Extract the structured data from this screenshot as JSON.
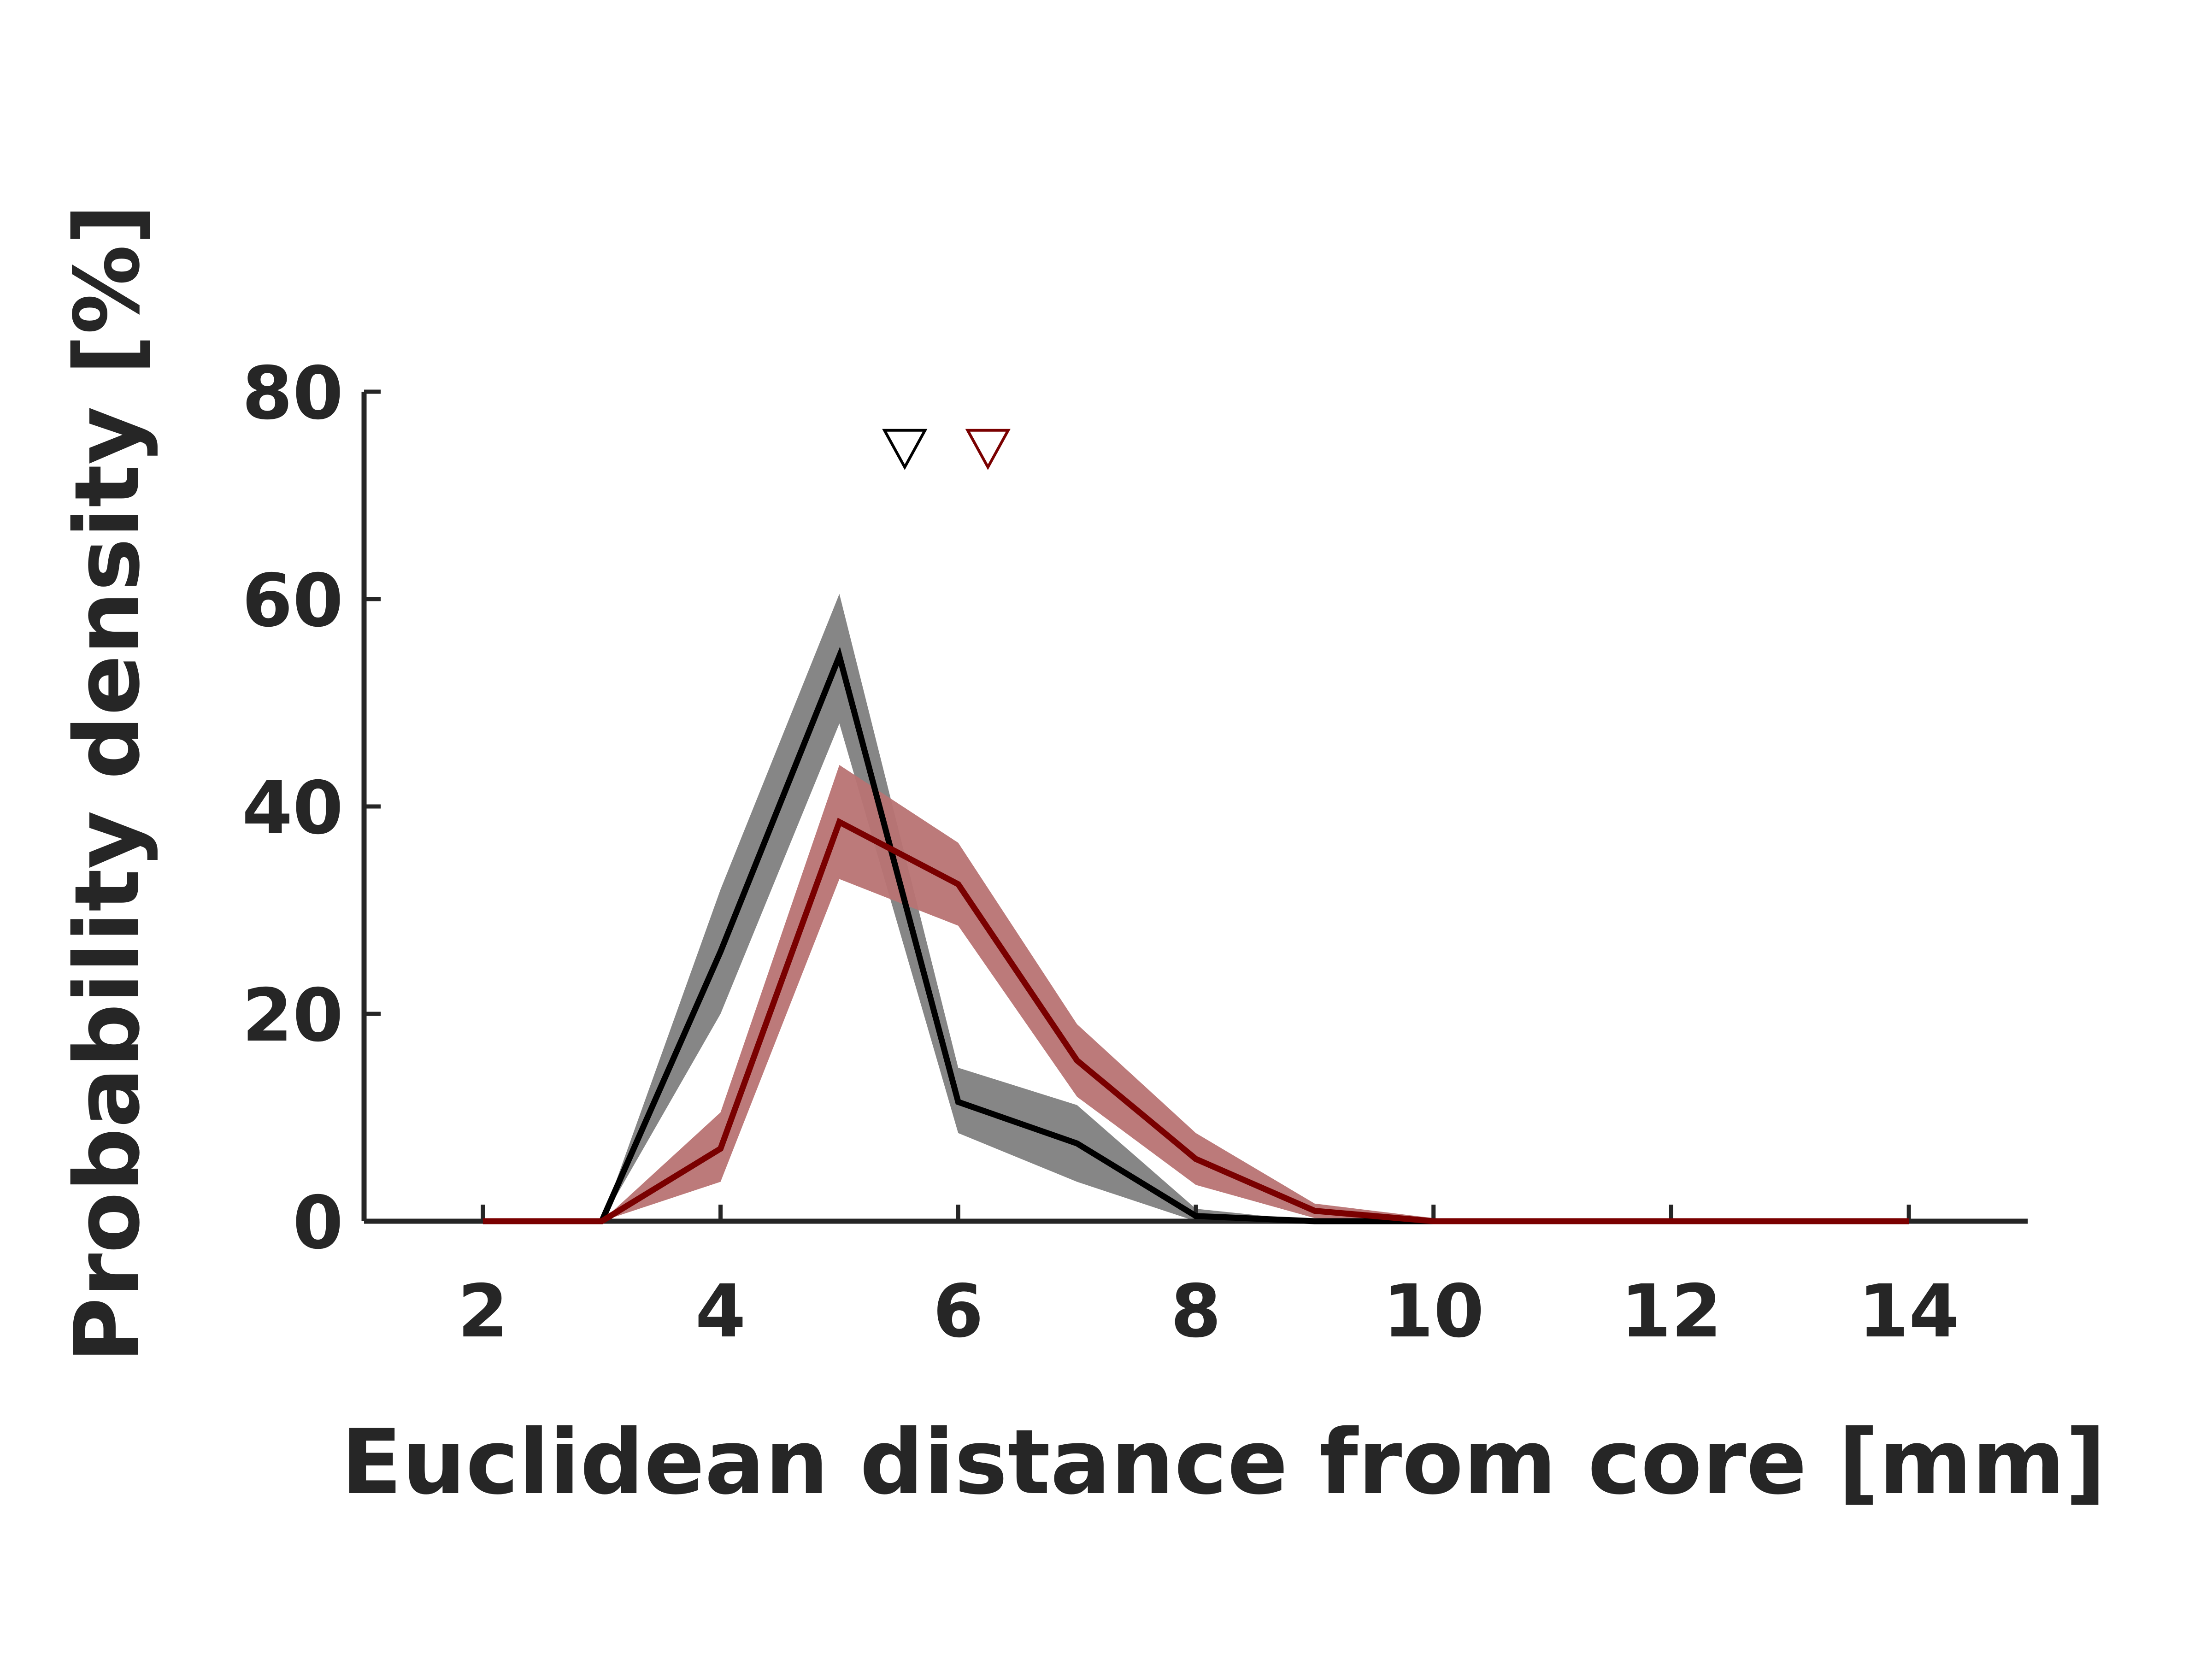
{
  "chart_data": {
    "type": "line",
    "title": "",
    "xlabel": "Euclidean distance from core [mm]",
    "ylabel": "Probability density [%]",
    "xlim": [
      1,
      15
    ],
    "ylim": [
      0,
      80
    ],
    "xticks": [
      2,
      4,
      6,
      8,
      10,
      12,
      14
    ],
    "yticks": [
      0,
      20,
      40,
      60,
      80
    ],
    "grid": false,
    "legend": "none",
    "series": [
      {
        "color": "#000000",
        "band_color": "#808080",
        "x": [
          3,
          4,
          5,
          6,
          7,
          8,
          9,
          10,
          11,
          12,
          13,
          14
        ],
        "values": [
          0,
          26,
          54.5,
          11.5,
          7.5,
          0.5,
          0,
          0,
          0,
          0,
          0,
          0
        ],
        "lower": [
          0,
          20,
          48,
          8.5,
          3.8,
          0,
          0,
          0,
          0,
          0,
          0,
          0
        ],
        "upper": [
          0,
          32,
          60.5,
          14.8,
          11.2,
          1.2,
          0,
          0,
          0,
          0,
          0,
          0
        ],
        "marker": {
          "shape": "down-triangle",
          "x": 5.55,
          "y": 74.5
        }
      },
      {
        "color": "#7a0000",
        "band_color": "#b87373",
        "x": [
          2,
          3,
          4,
          5,
          6,
          7,
          8,
          9,
          10,
          11,
          12,
          13,
          14
        ],
        "values": [
          0,
          0,
          7,
          38.5,
          32.5,
          15.5,
          6,
          1,
          0,
          0,
          0,
          0,
          0
        ],
        "lower": [
          0,
          0,
          3.8,
          33,
          28.5,
          12,
          3.5,
          0.3,
          0,
          0,
          0,
          0,
          0
        ],
        "upper": [
          0,
          0,
          10.5,
          44,
          36.5,
          19,
          8.5,
          1.7,
          0.3,
          0,
          0,
          0,
          0
        ],
        "marker": {
          "shape": "down-triangle",
          "x": 6.25,
          "y": 74.5
        }
      }
    ]
  }
}
